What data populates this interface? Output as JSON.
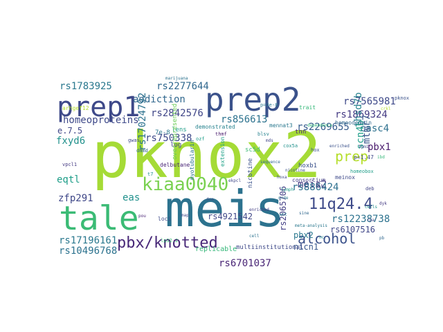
{
  "chart_data": {
    "type": "wordcloud",
    "colormap": "viridis",
    "background": "#ffffff",
    "words": [
      {
        "text": "pknox2",
        "weight": 1.0,
        "color": "#a5db36"
      },
      {
        "text": "meis",
        "weight": 0.86,
        "color": "#2c728e"
      },
      {
        "text": "tale",
        "weight": 0.62,
        "color": "#3bbb75"
      },
      {
        "text": "prep2",
        "weight": 0.6,
        "color": "#3b528b"
      },
      {
        "text": "prep1",
        "weight": 0.52,
        "color": "#3e4989"
      },
      {
        "text": "kiaa0040",
        "weight": 0.35,
        "color": "#7ad151"
      },
      {
        "text": "pbx/knotted",
        "weight": 0.33,
        "color": "#482878"
      },
      {
        "text": "11q24.4",
        "weight": 0.3,
        "color": "#3e4a89"
      },
      {
        "text": "alcohol",
        "weight": 0.29,
        "color": "#3b528b"
      },
      {
        "text": "prep",
        "weight": 0.27,
        "color": "#b5de2b"
      },
      {
        "text": "rs2842576",
        "weight": 0.2,
        "color": "#404688"
      },
      {
        "text": "addiction",
        "weight": 0.2,
        "color": "#31688e"
      },
      {
        "text": "rs1869324",
        "weight": 0.2,
        "color": "#443a83"
      },
      {
        "text": "rs7565981",
        "weight": 0.2,
        "color": "#3e4989"
      },
      {
        "text": "rs2277644",
        "weight": 0.2,
        "color": "#31688e"
      },
      {
        "text": "rs1783925",
        "weight": 0.2,
        "color": "#2a788e"
      },
      {
        "text": "homeoproteins",
        "weight": 0.2,
        "color": "#3e4989"
      },
      {
        "text": "rs2269655",
        "weight": 0.2,
        "color": "#365c8d"
      },
      {
        "text": "rs856613",
        "weight": 0.2,
        "color": "#2c728e"
      },
      {
        "text": "rs750338",
        "weight": 0.18,
        "color": "#3e4a89"
      },
      {
        "text": "casc4",
        "weight": 0.18,
        "color": "#2d708e"
      },
      {
        "text": "thsd7b",
        "weight": 0.18,
        "color": "#26828e"
      },
      {
        "text": "mtmr7",
        "weight": 0.18,
        "color": "#39568c"
      },
      {
        "text": "fxyd6",
        "weight": 0.18,
        "color": "#21918c"
      },
      {
        "text": "e.7.5",
        "weight": 0.16,
        "color": "#404688"
      },
      {
        "text": "rs17024792",
        "weight": 0.18,
        "color": "#2c728e"
      },
      {
        "text": "pbx1",
        "weight": 0.18,
        "color": "#481a6c"
      },
      {
        "text": "scn4b",
        "weight": 0.18,
        "color": "#1f9e89"
      },
      {
        "text": "eqtl",
        "weight": 0.17,
        "color": "#1f9e89"
      },
      {
        "text": "meis2",
        "weight": 0.17,
        "color": "#443a83"
      },
      {
        "text": "rs886424",
        "weight": 0.17,
        "color": "#2d708e"
      },
      {
        "text": "zfp291",
        "weight": 0.17,
        "color": "#3f4788"
      },
      {
        "text": "eas",
        "weight": 0.17,
        "color": "#21918c"
      },
      {
        "text": "rs2065706",
        "weight": 0.15,
        "color": "#433e85"
      },
      {
        "text": "rs12238738",
        "weight": 0.17,
        "color": "#2c728e"
      },
      {
        "text": "rs6107516",
        "weight": 0.14,
        "color": "#404688"
      },
      {
        "text": "rs4921542",
        "weight": 0.15,
        "color": "#3f4788"
      },
      {
        "text": "rs17196161",
        "weight": 0.17,
        "color": "#2a788e"
      },
      {
        "text": "rs10496768",
        "weight": 0.17,
        "color": "#2c728e"
      },
      {
        "text": "pbx2",
        "weight": 0.16,
        "color": "#2a788e"
      },
      {
        "text": "nicn1",
        "weight": 0.16,
        "color": "#38588c"
      },
      {
        "text": "rs6701037",
        "weight": 0.17,
        "color": "#482475"
      },
      {
        "text": "replicable",
        "weight": 0.1,
        "color": "#35b779"
      },
      {
        "text": "multiinstitutional",
        "weight": 0.09,
        "color": "#3e4989"
      },
      {
        "text": "lens",
        "weight": 0.1,
        "color": "#1f9e89"
      },
      {
        "text": "log",
        "weight": 0.09,
        "color": "#414487"
      },
      {
        "text": "hoxb1",
        "weight": 0.1,
        "color": "#3b528b"
      },
      {
        "text": "tnn",
        "weight": 0.09,
        "color": "#482475"
      },
      {
        "text": "homeodomain",
        "weight": 0.09,
        "color": "#31688e"
      },
      {
        "text": "mennat3",
        "weight": 0.08,
        "color": "#2a788e"
      },
      {
        "text": "sc5d",
        "weight": 0.09,
        "color": "#3dbc74"
      },
      {
        "text": "p=1.47",
        "weight": 0.08,
        "color": "#3f4788"
      },
      {
        "text": "consortium",
        "weight": 0.08,
        "color": "#433e85"
      },
      {
        "text": "meinox",
        "weight": 0.08,
        "color": "#3e4989"
      },
      {
        "text": "7e-8",
        "weight": 0.08,
        "color": "#2a788e"
      },
      {
        "text": "arhgef12",
        "weight": 0.08,
        "color": "#b5de2b"
      },
      {
        "text": "overrepresented",
        "weight": 0.09,
        "color": "#6ece58"
      },
      {
        "text": "nicotine",
        "weight": 0.09,
        "color": "#3b528b"
      },
      {
        "text": "extension",
        "weight": 0.08,
        "color": "#1fa188"
      },
      {
        "text": "myotubularin",
        "weight": 0.07,
        "color": "#2c728e"
      },
      {
        "text": "demonstrated",
        "weight": 0.07,
        "color": "#26828e"
      },
      {
        "text": "trait",
        "weight": 0.07,
        "color": "#35b779"
      },
      {
        "text": "loci",
        "weight": 0.07,
        "color": "#3e4989"
      },
      {
        "text": "hox",
        "weight": 0.06,
        "color": "#3b528b"
      },
      {
        "text": "cox5a",
        "weight": 0.06,
        "color": "#21918c"
      },
      {
        "text": "delbutane",
        "weight": 0.07,
        "color": "#482475"
      },
      {
        "text": "pknox",
        "weight": 0.06,
        "color": "#3b528b"
      },
      {
        "text": "vpcl1",
        "weight": 0.06,
        "color": "#443a83"
      },
      {
        "text": "dmmd",
        "weight": 0.05,
        "color": "#31688e"
      },
      {
        "text": "ozf",
        "weight": 0.05,
        "color": "#1f9e89"
      },
      {
        "text": "deb",
        "weight": 0.05,
        "color": "#414487"
      },
      {
        "text": "lp32.2",
        "weight": 0.05,
        "color": "#3bbb75"
      },
      {
        "text": "thmf",
        "weight": 0.05,
        "color": "#481a6c"
      },
      {
        "text": "p=3e-8",
        "weight": 0.05,
        "color": "#2a788e"
      },
      {
        "text": "gwas",
        "weight": 0.05,
        "color": "#3e4989"
      },
      {
        "text": "t7",
        "weight": 0.05,
        "color": "#21918c"
      },
      {
        "text": "marijuana",
        "weight": 0.05,
        "color": "#2c728e"
      },
      {
        "text": "dependence",
        "weight": 0.05,
        "color": "#35b779"
      },
      {
        "text": "nicotine",
        "weight": 0.05,
        "color": "#3b528b"
      },
      {
        "text": "enriched",
        "weight": 0.05,
        "color": "#433e85"
      },
      {
        "text": "blsv",
        "weight": 0.05,
        "color": "#26828e"
      },
      {
        "text": "mds",
        "weight": 0.05,
        "color": "#414487"
      },
      {
        "text": "homeobox",
        "weight": 0.05,
        "color": "#1f9e89"
      },
      {
        "text": "bit",
        "weight": 0.05,
        "color": "#443a83"
      },
      {
        "text": "fpm1",
        "weight": 0.05,
        "color": "#3e4989"
      },
      {
        "text": "nrde",
        "weight": 0.05,
        "color": "#2a788e"
      },
      {
        "text": "sequence",
        "weight": 0.05,
        "color": "#31688e"
      },
      {
        "text": "cells",
        "weight": 0.05,
        "color": "#21918c"
      },
      {
        "text": "ekpcl",
        "weight": 0.05,
        "color": "#3f4788"
      },
      {
        "text": "enriched",
        "weight": 0.05,
        "color": "#3b528b"
      },
      {
        "text": "crkl",
        "weight": 0.05,
        "color": "#b5de2b"
      },
      {
        "text": "wnt",
        "weight": 0.05,
        "color": "#26828e"
      },
      {
        "text": "pou",
        "weight": 0.05,
        "color": "#482475"
      },
      {
        "text": "hoxa",
        "weight": 0.05,
        "color": "#3e4989"
      },
      {
        "text": "sine",
        "weight": 0.05,
        "color": "#31688e"
      },
      {
        "text": "ibd",
        "weight": 0.05,
        "color": "#35b779"
      },
      {
        "text": "cell",
        "weight": 0.05,
        "color": "#2c728e"
      },
      {
        "text": "rpa",
        "weight": 0.05,
        "color": "#414487"
      },
      {
        "text": "nc",
        "weight": 0.05,
        "color": "#21918c"
      },
      {
        "text": "dna",
        "weight": 0.05,
        "color": "#3b528b"
      },
      {
        "text": "dyk",
        "weight": 0.05,
        "color": "#443a83"
      },
      {
        "text": "meta-analysis",
        "weight": 0.05,
        "color": "#2a788e"
      },
      {
        "text": "lymph",
        "weight": 0.05,
        "color": "#1f9e89"
      },
      {
        "text": "map",
        "weight": 0.05,
        "color": "#3e4989"
      },
      {
        "text": "pb",
        "weight": 0.05,
        "color": "#31688e"
      }
    ]
  }
}
